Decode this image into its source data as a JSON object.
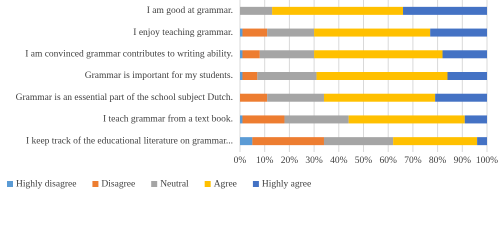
{
  "chart_data": {
    "type": "stacked-barh",
    "categories": [
      "I am good at grammar.",
      "I enjoy teaching grammar.",
      "I am convinced grammar contributes to writing ability.",
      "Grammar is important for my students.",
      "Grammar is an essential part of the school subject Dutch.",
      "I teach grammar from a text book.",
      "I keep track of the educational literature on grammar..."
    ],
    "series": [
      {
        "name": "Highly disagree",
        "color": "#5b9bd5",
        "values": [
          0,
          1,
          1,
          1,
          0,
          1,
          5
        ]
      },
      {
        "name": "Disagree",
        "color": "#ed7d31",
        "values": [
          0,
          10,
          7,
          6,
          11,
          17,
          29
        ]
      },
      {
        "name": "Neutral",
        "color": "#a5a5a5",
        "values": [
          13,
          19,
          22,
          24,
          23,
          26,
          28
        ]
      },
      {
        "name": "Agree",
        "color": "#ffc000",
        "values": [
          53,
          47,
          52,
          53,
          45,
          47,
          34
        ]
      },
      {
        "name": "Highly agree",
        "color": "#4472c4",
        "values": [
          34,
          23,
          18,
          16,
          21,
          9,
          4
        ]
      }
    ],
    "xlim": [
      0,
      100
    ],
    "xticks": [
      {
        "value": 0,
        "label": "0%"
      },
      {
        "value": 10,
        "label": "10%"
      },
      {
        "value": 20,
        "label": "20%"
      },
      {
        "value": 30,
        "label": "30%"
      },
      {
        "value": 40,
        "label": "40%"
      },
      {
        "value": 50,
        "label": "50%"
      },
      {
        "value": 60,
        "label": "60%"
      },
      {
        "value": 70,
        "label": "70%"
      },
      {
        "value": 80,
        "label": "80%"
      },
      {
        "value": 90,
        "label": "90%"
      },
      {
        "value": 100,
        "label": "100%"
      }
    ],
    "grid": true,
    "legend": "bottom"
  }
}
